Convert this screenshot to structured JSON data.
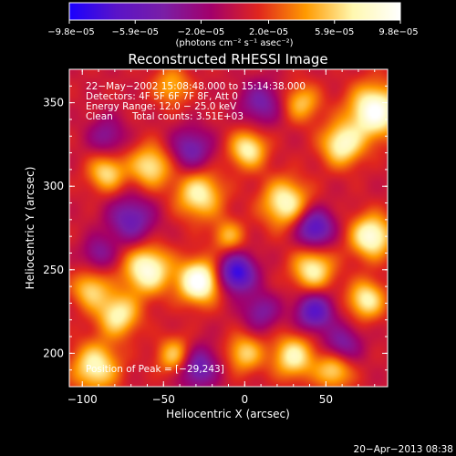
{
  "chart_data": {
    "type": "heatmap",
    "title": "Reconstructed RHESSI Image",
    "xlabel": "Heliocentric X (arcsec)",
    "ylabel": "Heliocentric Y (arcsec)",
    "xlim": [
      -108,
      88
    ],
    "ylim": [
      180,
      370
    ],
    "x_ticks": [
      {
        "value": -100,
        "label": "−100"
      },
      {
        "value": -50,
        "label": "−50"
      },
      {
        "value": 0,
        "label": "0"
      },
      {
        "value": 50,
        "label": "50"
      }
    ],
    "y_ticks": [
      {
        "value": 200,
        "label": "200"
      },
      {
        "value": 250,
        "label": "250"
      },
      {
        "value": 300,
        "label": "300"
      },
      {
        "value": 350,
        "label": "350"
      }
    ],
    "colorbar": {
      "unit_label": "(photons cm⁻² s⁻¹ asec⁻²)",
      "range": [
        -9.8e-05,
        9.8e-05
      ],
      "ticks": [
        {
          "value": -9.8e-05,
          "label": "−9.8e−05"
        },
        {
          "value": -5.9e-05,
          "label": "−5.9e−05"
        },
        {
          "value": -2e-05,
          "label": "−2.0e−05"
        },
        {
          "value": 2e-05,
          "label": "2.0e−05"
        },
        {
          "value": 5.9e-05,
          "label": "5.9e−05"
        },
        {
          "value": 9.8e-05,
          "label": "9.8e−05"
        }
      ],
      "colors": [
        "#1a00ff",
        "#5a14c8",
        "#7a1ea6",
        "#a3006a",
        "#e0261e",
        "#ff9a00",
        "#fff8b0",
        "#ffffff"
      ]
    },
    "annotations": {
      "time_range": "22−May−2002 15:08:48.000 to 15:14:38.000",
      "detectors": "Detectors: 4F 5F 6F 7F 8F, Att 0",
      "energy": "Energy Range: 12.0 − 25.0 keV",
      "clean": "Clean",
      "total_counts": "Total counts: 3.51E+03",
      "peak": "Position of Peak = [−29,243]"
    },
    "footer_date": "20−Apr−2013 08:38",
    "sources": [
      {
        "x": -28,
        "y": 243,
        "amp": 1.0,
        "s": 9
      },
      {
        "x": -60,
        "y": 250,
        "amp": 0.85,
        "s": 10
      },
      {
        "x": -78,
        "y": 223,
        "amp": 0.7,
        "s": 9
      },
      {
        "x": -92,
        "y": 192,
        "amp": 0.72,
        "s": 10
      },
      {
        "x": -95,
        "y": 238,
        "amp": 0.55,
        "s": 8
      },
      {
        "x": -85,
        "y": 308,
        "amp": 0.6,
        "s": 8
      },
      {
        "x": -58,
        "y": 312,
        "amp": 0.65,
        "s": 9
      },
      {
        "x": -28,
        "y": 295,
        "amp": 0.7,
        "s": 10
      },
      {
        "x": -10,
        "y": 270,
        "amp": 0.45,
        "s": 7
      },
      {
        "x": 2,
        "y": 322,
        "amp": 0.7,
        "s": 8
      },
      {
        "x": 25,
        "y": 290,
        "amp": 0.75,
        "s": 10
      },
      {
        "x": 42,
        "y": 250,
        "amp": 0.7,
        "s": 9
      },
      {
        "x": 30,
        "y": 198,
        "amp": 0.7,
        "s": 9
      },
      {
        "x": 0,
        "y": 200,
        "amp": 0.55,
        "s": 8
      },
      {
        "x": -42,
        "y": 198,
        "amp": 0.65,
        "s": 8
      },
      {
        "x": 60,
        "y": 325,
        "amp": 0.75,
        "s": 9
      },
      {
        "x": 80,
        "y": 345,
        "amp": 0.95,
        "s": 11
      },
      {
        "x": 78,
        "y": 270,
        "amp": 0.85,
        "s": 9
      },
      {
        "x": 75,
        "y": 232,
        "amp": 0.7,
        "s": 8
      },
      {
        "x": 55,
        "y": 190,
        "amp": 0.6,
        "s": 8
      },
      {
        "x": 35,
        "y": 350,
        "amp": 0.5,
        "s": 8
      },
      {
        "x": -45,
        "y": 360,
        "amp": 0.45,
        "s": 8
      },
      {
        "x": -30,
        "y": 192,
        "amp": -0.7,
        "s": 9
      },
      {
        "x": -33,
        "y": 322,
        "amp": -0.55,
        "s": 9
      },
      {
        "x": -70,
        "y": 280,
        "amp": -0.6,
        "s": 10
      },
      {
        "x": -5,
        "y": 248,
        "amp": -0.95,
        "s": 8
      },
      {
        "x": 43,
        "y": 275,
        "amp": -0.8,
        "s": 8
      },
      {
        "x": 43,
        "y": 225,
        "amp": -0.75,
        "s": 8
      },
      {
        "x": 60,
        "y": 205,
        "amp": -0.5,
        "s": 8
      },
      {
        "x": -85,
        "y": 330,
        "amp": -0.4,
        "s": 8
      },
      {
        "x": 10,
        "y": 350,
        "amp": -0.5,
        "s": 9
      },
      {
        "x": -90,
        "y": 260,
        "amp": -0.4,
        "s": 7
      },
      {
        "x": 10,
        "y": 225,
        "amp": -0.45,
        "s": 8
      }
    ]
  }
}
